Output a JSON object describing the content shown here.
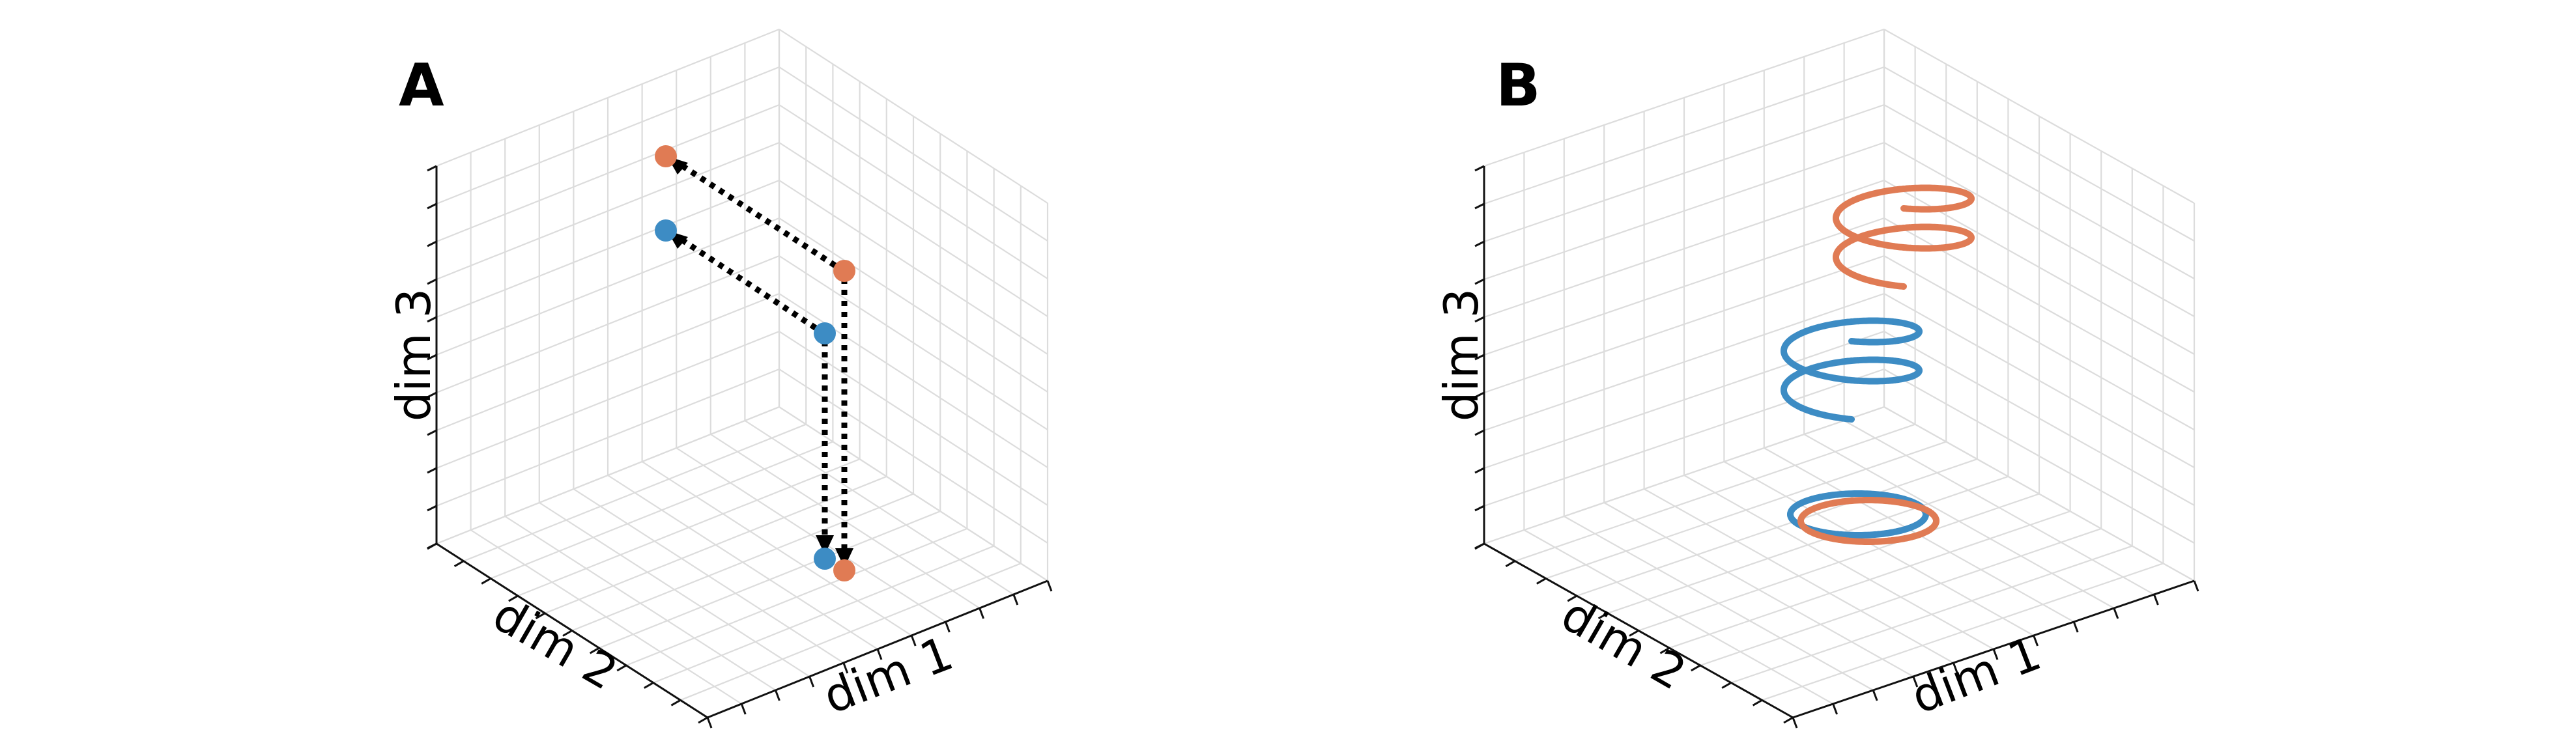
{
  "colors": {
    "orange": "#e07b54",
    "blue": "#3d8cc4",
    "grid": "#dcdcdc",
    "arrow": "#000000"
  },
  "panels": {
    "a": {
      "label": "A",
      "xlabel": "dim 1",
      "ylabel": "dim 2",
      "zlabel": "dim 3"
    },
    "b": {
      "label": "B",
      "xlabel": "dim 1",
      "ylabel": "dim 2",
      "zlabel": "dim 3"
    }
  }
}
